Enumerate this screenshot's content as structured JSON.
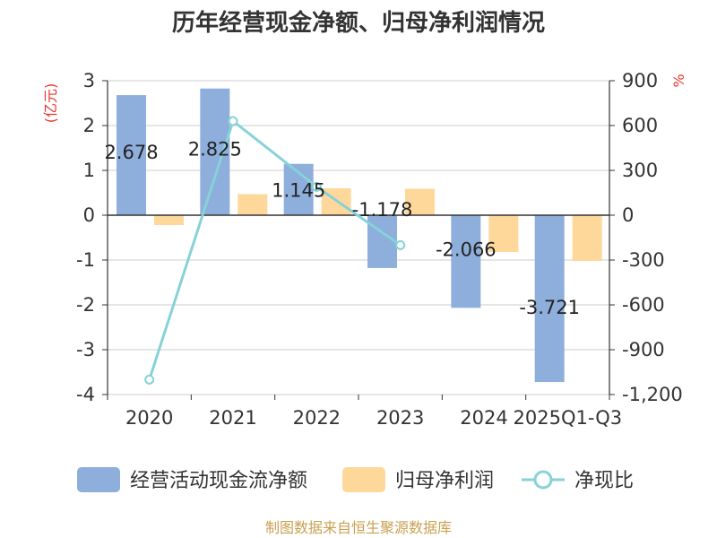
{
  "title": "历年经营现金净额、归母净利润情况",
  "source": "制图数据来自恒生聚源数据库",
  "colors": {
    "cashflow": "#8eaedb",
    "profit": "#fdd89a",
    "ratio": "#86d2d8",
    "axis": "#333333",
    "grid": "#cccccc",
    "unit": "#e8352e"
  },
  "chart_data": {
    "type": "bar",
    "title": "历年经营现金净额、归母净利润情况",
    "categories": [
      "2020",
      "2021",
      "2022",
      "2023",
      "2024",
      "2025Q1-Q3"
    ],
    "left_axis": {
      "unit": "(亿元)",
      "ylim": [
        -4,
        3
      ],
      "ticks": [
        3,
        2,
        1,
        0,
        -1,
        -2,
        -3,
        -4
      ],
      "tick_labels": [
        "3",
        "2",
        "1",
        "0",
        "-1",
        "-2",
        "-3",
        "-4"
      ]
    },
    "right_axis": {
      "unit": "%",
      "ylim": [
        -1200,
        900
      ],
      "ticks": [
        900,
        600,
        300,
        0,
        -300,
        -600,
        -900,
        -1200
      ],
      "tick_labels": [
        "900",
        "600",
        "300",
        "0",
        "-300",
        "-600",
        "-900",
        "-1,200"
      ]
    },
    "series": [
      {
        "name": "经营活动现金流净额",
        "type": "bar",
        "axis": "left",
        "values": [
          2.678,
          2.825,
          1.145,
          -1.178,
          -2.066,
          -3.721
        ],
        "labels": [
          "2.678",
          "2.825",
          "1.145",
          "-1.178",
          "-2.066",
          "-3.721"
        ]
      },
      {
        "name": "归母净利润",
        "type": "bar",
        "axis": "left",
        "values": [
          -0.22,
          0.47,
          0.6,
          0.59,
          -0.82,
          -1.02
        ]
      },
      {
        "name": "净现比",
        "type": "line",
        "axis": "right",
        "values": [
          -1100,
          630,
          190,
          -200,
          null,
          null
        ]
      }
    ],
    "legend": [
      "经营活动现金流净额",
      "归母净利润",
      "净现比"
    ],
    "legend_position": "bottom"
  }
}
